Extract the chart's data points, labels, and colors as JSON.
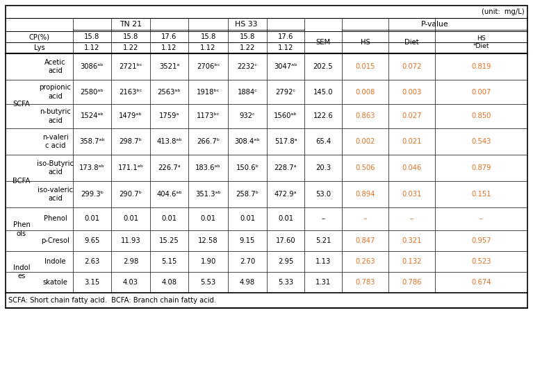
{
  "unit_text": "(unit:  mg/L)",
  "header2_CP": [
    "15.8",
    "15.8",
    "17.6",
    "15.8",
    "15.8",
    "17.6"
  ],
  "header2_Lys": [
    "1.12",
    "1.22",
    "1.12",
    "1.12",
    "1.22",
    "1.12"
  ],
  "categories": [
    {
      "group": "SCFA",
      "name": "Acetic\nacid",
      "values": [
        "3086ᵃᵇ",
        "2721ᵇᶜ",
        "3521ᵃ",
        "2706ᵇᶜ",
        "2232ᶜ",
        "3047ᵃᵇ"
      ],
      "SEM": "202.5",
      "HS": "0.015",
      "Diet": "0.072",
      "HSDiet": "0.819"
    },
    {
      "group": "",
      "name": "propionic\nacid",
      "values": [
        "2580ᵃᵇ",
        "2163ᵇᶜ",
        "2563ᵃᵇ",
        "1918ᵇᶜ",
        "1884ᶜ",
        "2792ᶜ"
      ],
      "SEM": "145.0",
      "HS": "0.008",
      "Diet": "0.003",
      "HSDiet": "0.007"
    },
    {
      "group": "",
      "name": "n-butyric\nacid",
      "values": [
        "1524ᵃᵇ",
        "1479ᵃᵇ",
        "1759ᵃ",
        "1173ᵇᶜ",
        "932ᶜ",
        "1560ᵃᵇ"
      ],
      "SEM": "122.6",
      "HS": "0.863",
      "Diet": "0.027",
      "HSDiet": "0.850"
    },
    {
      "group": "",
      "name": "n-valeri\nc acid",
      "values": [
        "358.7ᵃᵇ",
        "298.7ᵇ",
        "413.8ᵃᵇ",
        "266.7ᵇ",
        "308.4ᵃᵇ",
        "517.8ᵃ"
      ],
      "SEM": "65.4",
      "HS": "0.002",
      "Diet": "0.021",
      "HSDiet": "0.543"
    },
    {
      "group": "BCFA",
      "name": "iso-Butyric\nacid",
      "values": [
        "173.8ᵃᵇ",
        "171.1ᵃᵇ",
        "226.7ᵃ",
        "183.6ᵃᵇ",
        "150.6ᵇ",
        "228.7ᵃ"
      ],
      "SEM": "20.3",
      "HS": "0.506",
      "Diet": "0.046",
      "HSDiet": "0.879"
    },
    {
      "group": "",
      "name": "iso-valeric\nacid",
      "values": [
        "299.3ᵇ",
        "290.7ᵇ",
        "404.6ᵃᵇ",
        "351.3ᵃᵇ",
        "258.7ᵇ",
        "472.9ᵃ"
      ],
      "SEM": "53.0",
      "HS": "0.894",
      "Diet": "0.031",
      "HSDiet": "0.151"
    },
    {
      "group": "Phen\nols",
      "name": "Phenol",
      "values": [
        "0.01",
        "0.01",
        "0.01",
        "0.01",
        "0.01",
        "0.01"
      ],
      "SEM": "–",
      "HS": "–",
      "Diet": "–",
      "HSDiet": "–"
    },
    {
      "group": "",
      "name": "p-Cresol",
      "values": [
        "9.65",
        "11.93",
        "15.25",
        "12.58",
        "9.15",
        "17.60"
      ],
      "SEM": "5.21",
      "HS": "0.847",
      "Diet": "0.321",
      "HSDiet": "0.957"
    },
    {
      "group": "Indol\nes",
      "name": "Indole",
      "values": [
        "2.63",
        "2.98",
        "5.15",
        "1.90",
        "2.70",
        "2.95"
      ],
      "SEM": "1.13",
      "HS": "0.263",
      "Diet": "0.132",
      "HSDiet": "0.523"
    },
    {
      "group": "",
      "name": "skatole",
      "values": [
        "3.15",
        "4.03",
        "4.08",
        "5.53",
        "4.98",
        "5.33"
      ],
      "SEM": "1.31",
      "HS": "0.783",
      "Diet": "0.786",
      "HSDiet": "0.674"
    }
  ],
  "footnote": "SCFA: Short chain fatty acid.  BCFA: Branch chain fatty acid.",
  "bg_color": "#ffffff",
  "border_color": "#000000",
  "text_color": "#000000",
  "orange_color": "#e07020",
  "font_size": 7.2,
  "header_font_size": 7.8,
  "group_spans": [
    {
      "label": "SCFA",
      "start": 0,
      "end": 3
    },
    {
      "label": "BCFA",
      "start": 4,
      "end": 5
    },
    {
      "label": "Phen\nols",
      "start": 6,
      "end": 7
    },
    {
      "label": "Indol\nes",
      "start": 8,
      "end": 9
    }
  ]
}
